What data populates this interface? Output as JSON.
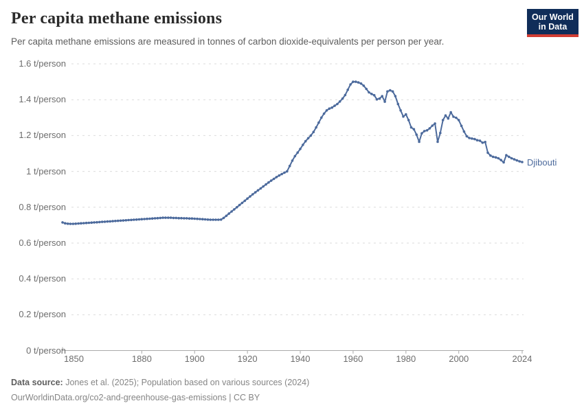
{
  "header": {
    "title": "Per capita methane emissions",
    "subtitle": "Per capita methane emissions are measured in tonnes of carbon dioxide-equivalents per person per year.",
    "logo": {
      "line1": "Our World",
      "line2": "in Data"
    }
  },
  "colors": {
    "series": "#4C6A9C",
    "logo_bg": "#102D59",
    "logo_stripe": "#D13D33",
    "grid": "#DBDBDB",
    "axis": "#A9A9A9"
  },
  "chart_data": {
    "type": "line",
    "title": "Per capita methane emissions",
    "unit": "t/person",
    "entity_label": "Djibouti",
    "x_start": 1850,
    "x_end": 2024,
    "x_step": 1,
    "xticks": [
      1850,
      1880,
      1900,
      1920,
      1940,
      1960,
      1980,
      2000,
      2024
    ],
    "ytick_values": [
      0,
      0.2,
      0.4,
      0.6,
      0.8,
      1,
      1.2,
      1.4,
      1.6
    ],
    "ytick_labels": [
      "0 t/person",
      "0.2 t/person",
      "0.4 t/person",
      "0.6 t/person",
      "0.8 t/person",
      "1 t/person",
      "1.2 t/person",
      "1.4 t/person",
      "1.6 t/person"
    ],
    "ylim": [
      0,
      1.6
    ],
    "xlim": [
      1850,
      2024
    ],
    "grid": "horizontal-dashed",
    "legend_position": "end-of-line",
    "series": [
      {
        "name": "Djibouti",
        "color": "#4C6A9C",
        "values": [
          0.715,
          0.71,
          0.708,
          0.707,
          0.707,
          0.708,
          0.709,
          0.71,
          0.711,
          0.712,
          0.713,
          0.714,
          0.715,
          0.716,
          0.717,
          0.718,
          0.719,
          0.72,
          0.721,
          0.722,
          0.723,
          0.724,
          0.725,
          0.726,
          0.727,
          0.728,
          0.729,
          0.73,
          0.731,
          0.732,
          0.733,
          0.734,
          0.735,
          0.736,
          0.737,
          0.738,
          0.739,
          0.74,
          0.741,
          0.741,
          0.741,
          0.741,
          0.74,
          0.74,
          0.739,
          0.739,
          0.738,
          0.738,
          0.737,
          0.737,
          0.736,
          0.735,
          0.734,
          0.733,
          0.732,
          0.731,
          0.73,
          0.73,
          0.73,
          0.73,
          0.731,
          0.74,
          0.752,
          0.764,
          0.776,
          0.788,
          0.8,
          0.812,
          0.824,
          0.836,
          0.848,
          0.86,
          0.872,
          0.883,
          0.894,
          0.905,
          0.916,
          0.927,
          0.938,
          0.948,
          0.958,
          0.968,
          0.977,
          0.985,
          0.993,
          1.0,
          1.03,
          1.06,
          1.085,
          1.105,
          1.125,
          1.148,
          1.168,
          1.185,
          1.2,
          1.22,
          1.245,
          1.272,
          1.3,
          1.322,
          1.34,
          1.35,
          1.356,
          1.366,
          1.376,
          1.39,
          1.406,
          1.426,
          1.455,
          1.485,
          1.5,
          1.5,
          1.496,
          1.49,
          1.478,
          1.46,
          1.441,
          1.432,
          1.425,
          1.402,
          1.406,
          1.42,
          1.389,
          1.446,
          1.452,
          1.446,
          1.42,
          1.376,
          1.34,
          1.306,
          1.318,
          1.286,
          1.245,
          1.235,
          1.205,
          1.165,
          1.212,
          1.225,
          1.229,
          1.24,
          1.255,
          1.267,
          1.165,
          1.214,
          1.286,
          1.312,
          1.295,
          1.33,
          1.305,
          1.299,
          1.286,
          1.254,
          1.222,
          1.196,
          1.186,
          1.183,
          1.18,
          1.174,
          1.171,
          1.16,
          1.164,
          1.104,
          1.088,
          1.081,
          1.078,
          1.073,
          1.063,
          1.05,
          1.09,
          1.081,
          1.073,
          1.067,
          1.061,
          1.056,
          1.052
        ]
      }
    ]
  },
  "footer": {
    "source_label": "Data source:",
    "source_text": " Jones et al. (2025); Population based on various sources (2024)",
    "note_text": "OurWorldinData.org/co2-and-greenhouse-gas-emissions | CC BY"
  }
}
